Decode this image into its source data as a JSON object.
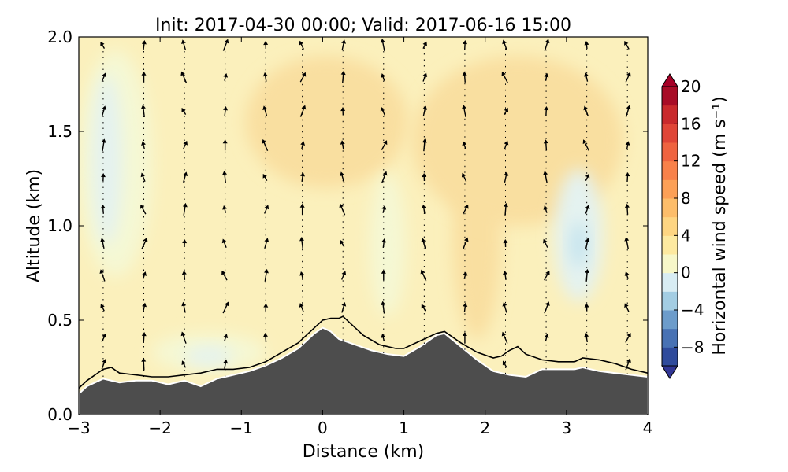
{
  "chart_data": {
    "type": "contour",
    "title": "Init: 2017-04-30 00:00; Valid: 2017-06-16 15:00",
    "xlabel": "Distance (km)",
    "ylabel": "Altitude (km)",
    "xlim": [
      -3,
      4
    ],
    "ylim": [
      0.0,
      2.0
    ],
    "xticks": [
      -3,
      -2,
      -1,
      0,
      1,
      2,
      3,
      4
    ],
    "xtick_labels": [
      "−3",
      "−2",
      "−1",
      "0",
      "1",
      "2",
      "3",
      "4"
    ],
    "yticks": [
      0.0,
      0.5,
      1.0,
      1.5,
      2.0
    ],
    "ytick_labels": [
      "0.0",
      "0.5",
      "1.0",
      "1.5",
      "2.0"
    ],
    "colorbar": {
      "label": "Horizontal wind speed (m s⁻¹)",
      "range": [
        -10,
        20
      ],
      "ticks": [
        20,
        16,
        12,
        8,
        4,
        0,
        -4,
        -8
      ],
      "tick_labels": [
        "20",
        "16",
        "12",
        "8",
        "4",
        "0",
        "−4",
        "−8"
      ],
      "colormap": "RdYlBu_r",
      "extend": "both"
    },
    "terrain": {
      "x": [
        -3.0,
        -2.9,
        -2.7,
        -2.5,
        -2.3,
        -2.1,
        -1.9,
        -1.7,
        -1.5,
        -1.3,
        -1.1,
        -0.9,
        -0.7,
        -0.5,
        -0.3,
        -0.1,
        0.0,
        0.1,
        0.2,
        0.4,
        0.6,
        0.8,
        1.0,
        1.2,
        1.4,
        1.5,
        1.7,
        1.9,
        2.1,
        2.3,
        2.5,
        2.7,
        2.9,
        3.1,
        3.2,
        3.4,
        3.6,
        3.8,
        4.0
      ],
      "y": [
        0.11,
        0.15,
        0.19,
        0.17,
        0.18,
        0.18,
        0.16,
        0.18,
        0.15,
        0.19,
        0.21,
        0.23,
        0.26,
        0.3,
        0.35,
        0.43,
        0.46,
        0.44,
        0.4,
        0.37,
        0.34,
        0.32,
        0.31,
        0.36,
        0.42,
        0.43,
        0.36,
        0.29,
        0.23,
        0.21,
        0.2,
        0.24,
        0.24,
        0.24,
        0.25,
        0.23,
        0.22,
        0.21,
        0.2
      ]
    },
    "boundary_line": {
      "x": [
        -3.0,
        -2.9,
        -2.7,
        -2.6,
        -2.5,
        -2.3,
        -2.1,
        -1.9,
        -1.7,
        -1.5,
        -1.3,
        -1.1,
        -0.9,
        -0.7,
        -0.5,
        -0.3,
        -0.1,
        0.0,
        0.1,
        0.2,
        0.25,
        0.35,
        0.5,
        0.7,
        0.9,
        1.0,
        1.2,
        1.4,
        1.5,
        1.7,
        1.9,
        2.1,
        2.2,
        2.3,
        2.4,
        2.5,
        2.7,
        2.9,
        3.1,
        3.2,
        3.4,
        3.6,
        3.8,
        4.0
      ],
      "y": [
        0.14,
        0.18,
        0.24,
        0.25,
        0.22,
        0.21,
        0.2,
        0.2,
        0.21,
        0.22,
        0.24,
        0.24,
        0.25,
        0.28,
        0.33,
        0.38,
        0.46,
        0.5,
        0.51,
        0.51,
        0.52,
        0.48,
        0.42,
        0.37,
        0.35,
        0.35,
        0.39,
        0.43,
        0.44,
        0.38,
        0.33,
        0.3,
        0.31,
        0.34,
        0.36,
        0.32,
        0.29,
        0.28,
        0.28,
        0.3,
        0.29,
        0.27,
        0.24,
        0.22
      ]
    },
    "contour_regions": [
      {
        "level": "0 to 2",
        "cx": -2.55,
        "cy": 1.33,
        "rx": 0.45,
        "ry": 0.6
      },
      {
        "level": "-2 to 0",
        "cx": -2.65,
        "cy": 1.35,
        "rx": 0.18,
        "ry": 0.45
      },
      {
        "level": "0 to 2",
        "cx": -1.4,
        "cy": 0.33,
        "rx": 0.7,
        "ry": 0.1
      },
      {
        "level": "-2 to 0",
        "cx": -1.4,
        "cy": 0.31,
        "rx": 0.3,
        "ry": 0.05
      },
      {
        "level": "0 to 2",
        "cx": 0.8,
        "cy": 0.9,
        "rx": 0.22,
        "ry": 0.38
      },
      {
        "level": "-2 to 0",
        "cx": 3.15,
        "cy": 0.95,
        "rx": 0.3,
        "ry": 0.35
      },
      {
        "level": "-4 to -2",
        "cx": 3.15,
        "cy": 0.9,
        "rx": 0.1,
        "ry": 0.12
      },
      {
        "level": "4 to 6",
        "cx": 1.9,
        "cy": 0.95,
        "rx": 0.3,
        "ry": 0.55
      },
      {
        "level": "4 to 6",
        "cx": 0.05,
        "cy": 1.55,
        "rx": 1.0,
        "ry": 0.35
      },
      {
        "level": "4 to 6",
        "cx": 2.4,
        "cy": 1.45,
        "rx": 1.3,
        "ry": 0.45
      }
    ],
    "vectors": {
      "columns": [
        -2.7,
        -2.2,
        -1.7,
        -1.2,
        -0.7,
        -0.25,
        0.25,
        0.75,
        1.25,
        1.75,
        2.25,
        2.75,
        3.25,
        3.75
      ],
      "rows": [
        1.95,
        1.78,
        1.6,
        1.42,
        1.25,
        1.08,
        0.9,
        0.73,
        0.56,
        0.4,
        0.26
      ]
    }
  }
}
